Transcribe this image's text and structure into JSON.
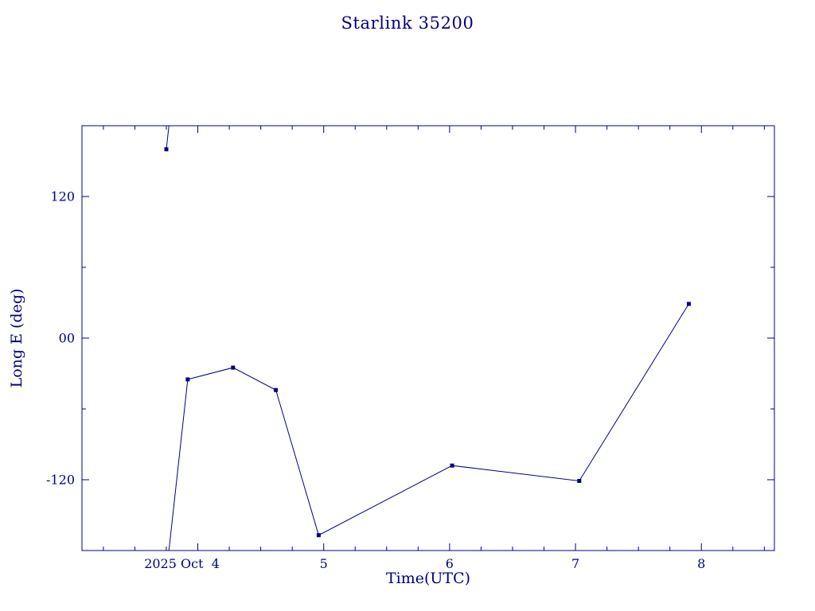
{
  "page": {
    "background": "#ffffff",
    "accent_color": "#000080"
  },
  "chart_data": {
    "type": "line",
    "title": "Starlink 35200",
    "xlabel": "Time(UTC)",
    "ylabel": "Long E (deg)",
    "xlim": [
      3.08,
      8.58
    ],
    "ylim": [
      -180,
      180
    ],
    "x_ticks": [
      4,
      5,
      6,
      7,
      8
    ],
    "x_tick_labels": [
      "2025 Oct  4",
      "5",
      "6",
      "7",
      "8"
    ],
    "x_first_label_dx": -20,
    "x_minor_step": 0.25,
    "y_ticks": [
      120,
      0,
      -120
    ],
    "y_tick_labels": [
      "120",
      "00",
      "-120"
    ],
    "y_minor_step": 60,
    "grid": "off",
    "legend": "none",
    "line_color": "#000080",
    "marker": "filled-square",
    "longitude_wrap": 360,
    "series": [
      {
        "name": "Long E (deg)",
        "x": [
          3.75,
          3.92,
          4.28,
          4.62,
          4.96,
          6.02,
          7.03,
          7.9
        ],
        "y": [
          160,
          -35,
          -25,
          -44,
          -167,
          -108,
          -121,
          29
        ]
      }
    ]
  }
}
